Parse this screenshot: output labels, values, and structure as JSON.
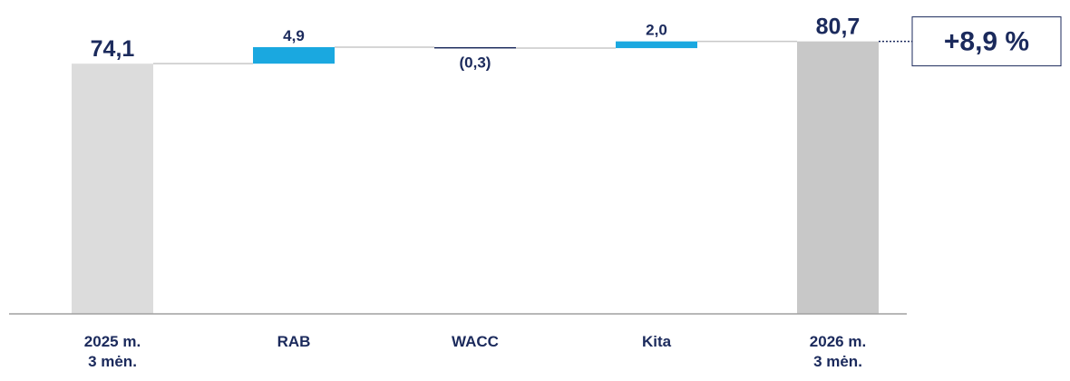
{
  "chart_data": {
    "type": "waterfall",
    "categories": [
      "2025 m.\n3 mėn.",
      "RAB",
      "WACC",
      "Kita",
      "2026 m.\n3 mėn."
    ],
    "values": [
      74.1,
      4.9,
      -0.3,
      2.0,
      80.7
    ],
    "value_labels": [
      "74,1",
      "4,9",
      "(0,3)",
      "2,0",
      "80,7"
    ],
    "measures": [
      "total",
      "relative",
      "relative",
      "relative",
      "total"
    ],
    "colors": [
      "#dcdcdc",
      "#1aa8e0",
      "#1b2a5c",
      "#1aa8e0",
      "#c8c8c8"
    ],
    "ylim": [
      0,
      90
    ],
    "annotation": "+8,9 %"
  }
}
